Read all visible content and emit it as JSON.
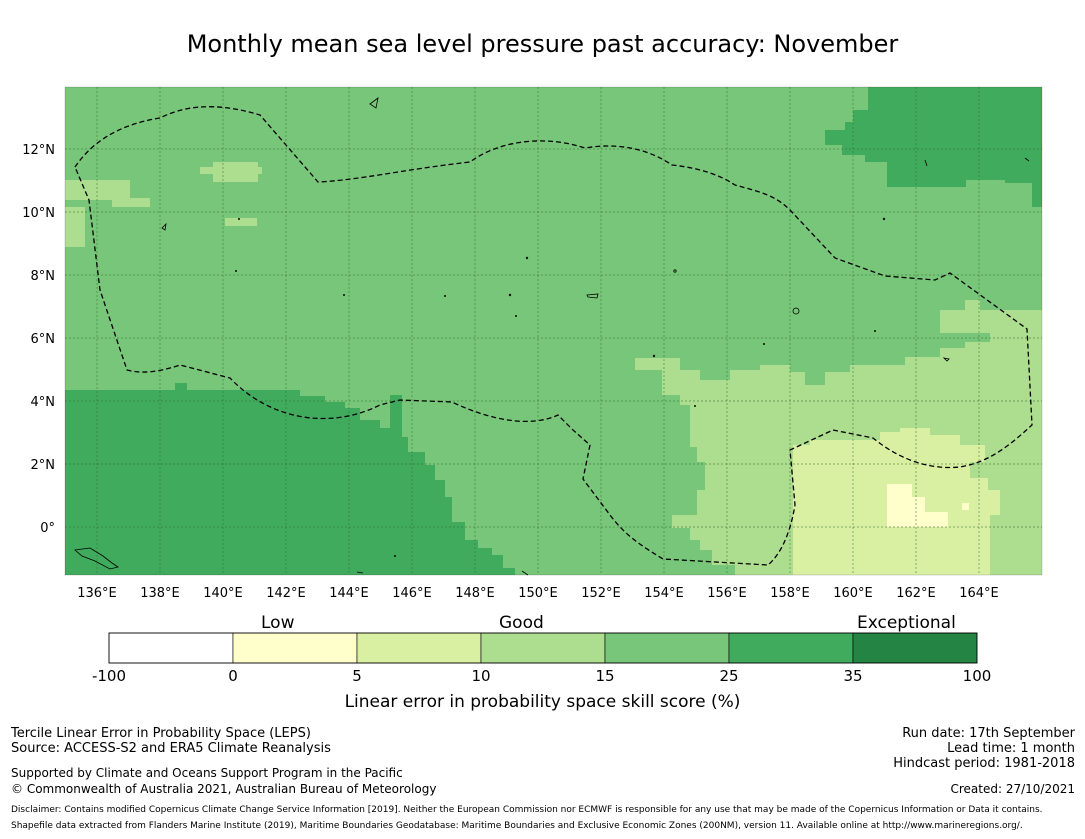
{
  "title": "Monthly mean sea level pressure past accuracy: November",
  "map": {
    "lon_ticks": [
      "136°E",
      "138°E",
      "140°E",
      "142°E",
      "144°E",
      "146°E",
      "148°E",
      "150°E",
      "152°E",
      "154°E",
      "156°E",
      "158°E",
      "160°E",
      "162°E",
      "164°E"
    ],
    "lat_ticks": [
      "12°N",
      "10°N",
      "8°N",
      "6°N",
      "4°N",
      "2°N",
      "0°"
    ],
    "colors": {
      "band_0_5": "#ffffcc",
      "band_5_10": "#d9f0a3",
      "band_10_15": "#addd8e",
      "band_15_25": "#78c679",
      "band_25_35": "#41ab5d",
      "band_35_100": "#238443",
      "grid": "#2e6b2e",
      "boundary": "#000000"
    }
  },
  "colorbar": {
    "categories": [
      "Low",
      "Good",
      "Exceptional"
    ],
    "ticks": [
      "-100",
      "0",
      "5",
      "10",
      "15",
      "25",
      "35",
      "100"
    ],
    "colors": [
      "#ffffff",
      "#ffffcc",
      "#d9f0a3",
      "#addd8e",
      "#78c679",
      "#41ab5d",
      "#238443"
    ],
    "label": "Linear error in probability space skill score (%)"
  },
  "footer": {
    "left_line1": "Tercile Linear Error in Probability Space (LEPS)",
    "left_line2": "Source: ACCESS-S2 and ERA5 Climate Reanalysis",
    "left_line3": "Supported by Climate and Oceans Support Program in the Pacific",
    "left_line4": "© Commonwealth of Australia 2021, Australian Bureau of Meteorology",
    "run_date": "Run date: 17th September",
    "lead_time": "Lead time: 1 month",
    "hindcast": "Hindcast period: 1981-2018",
    "created": "Created: 27/10/2021",
    "disclaimer": "Disclaimer: Contains modified Copernicus Climate Change Service Information [2019]. Neither the European Commission nor ECMWF is responsible for any use that may be made of the Copernicus Information or Data it contains.",
    "shapefile": "Shapefile data extracted from Flanders Marine Institute (2019), Maritime Boundaries Geodatabase: Maritime Boundaries and Exclusive Economic Zones (200NM), version 11. Available online at http://www.marineregions.org/."
  }
}
